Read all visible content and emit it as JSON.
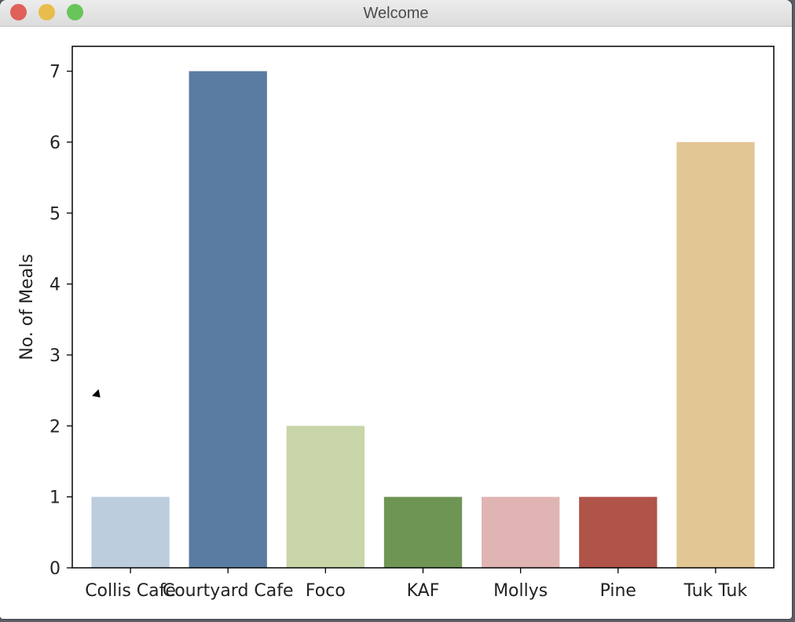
{
  "window": {
    "title": "Welcome"
  },
  "chart_data": {
    "type": "bar",
    "categories": [
      "Collis Cafe",
      "Courtyard Cafe",
      "Foco",
      "KAF",
      "Mollys",
      "Pine",
      "Tuk Tuk"
    ],
    "values": [
      1,
      7,
      2,
      1,
      1,
      1,
      6
    ],
    "colors": [
      "#bccddd",
      "#5a7ca2",
      "#c7d5a8",
      "#6f9554",
      "#e0b4b2",
      "#b0544a",
      "#e2c694"
    ],
    "ylabel": "No. of Meals",
    "xlabel": "",
    "yticks": [
      0,
      1,
      2,
      3,
      4,
      5,
      6,
      7
    ],
    "ylim": [
      0,
      7.35
    ],
    "grid": false
  }
}
